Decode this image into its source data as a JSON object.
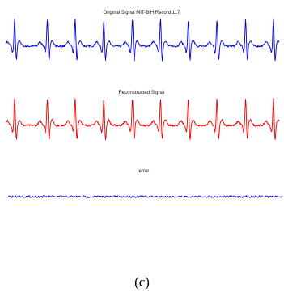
{
  "caption": "(c)",
  "chart_data": [
    {
      "type": "line",
      "title": "Original Signal MIT-BIH Record:117",
      "xlabel": "",
      "ylabel": "",
      "axes_visible": false,
      "grid": false,
      "series": [
        {
          "color": "#0000dd",
          "pattern": "ECG",
          "beats": 10,
          "r_peak_x": [
            0.03,
            0.15,
            0.252,
            0.357,
            0.462,
            0.565,
            0.667,
            0.772,
            0.877,
            0.979
          ]
        }
      ]
    },
    {
      "type": "line",
      "title": "Reconstructed Signal",
      "xlabel": "",
      "ylabel": "",
      "axes_visible": false,
      "grid": false,
      "series": [
        {
          "color": "#ee0000",
          "pattern": "ECG",
          "beats": 10,
          "r_peak_x": [
            0.03,
            0.15,
            0.252,
            0.357,
            0.462,
            0.565,
            0.667,
            0.772,
            0.877,
            0.979
          ]
        }
      ]
    },
    {
      "type": "line",
      "title": "error",
      "xlabel": "",
      "ylabel": "",
      "axes_visible": false,
      "grid": false,
      "series": [
        {
          "color": "#0000bb",
          "pattern": "noise"
        }
      ]
    }
  ]
}
